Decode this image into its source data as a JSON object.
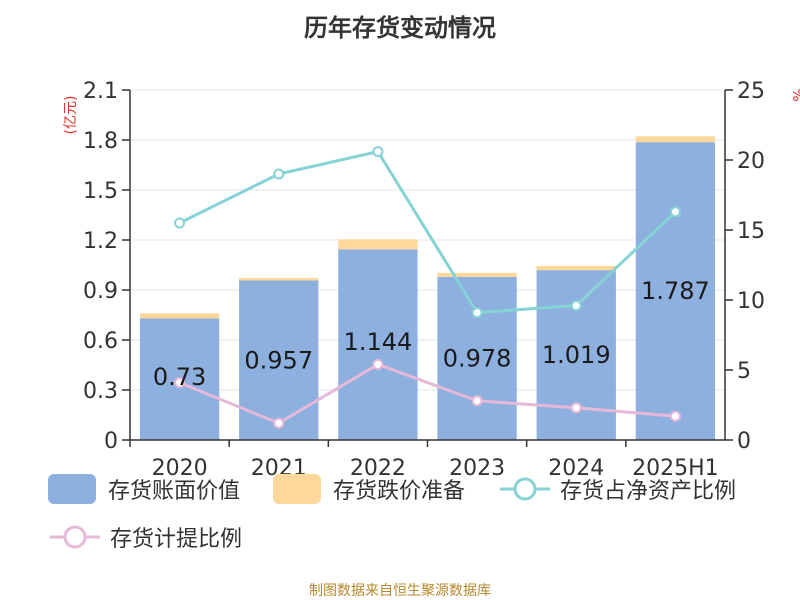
{
  "title": "历年存货变动情况",
  "source": "制图数据来自恒生聚源数据库",
  "colors": {
    "book_value": "#8eb0de",
    "provision": "#fdd89a",
    "ratio_net_assets": "#86d3d6",
    "provision_ratio": "#e6b8da",
    "axis_unit": "#e0302c"
  },
  "legend": [
    {
      "label": "存货账面价值",
      "kind": "bar",
      "color_key": "book_value"
    },
    {
      "label": "存货跌价准备",
      "kind": "bar",
      "color_key": "provision"
    },
    {
      "label": "存货占净资产比例",
      "kind": "line",
      "color_key": "ratio_net_assets"
    },
    {
      "label": "存货计提比例",
      "kind": "line",
      "color_key": "provision_ratio"
    }
  ],
  "chart_data": {
    "type": "bar",
    "title": "历年存货变动情况",
    "categories": [
      "2020",
      "2021",
      "2022",
      "2023",
      "2024",
      "2025H1"
    ],
    "y_left": {
      "unit": "(亿元)",
      "ylim": [
        0,
        2.1
      ],
      "ticks": [
        "0",
        "0.3",
        "0.6",
        "0.9",
        "1.2",
        "1.5",
        "1.8",
        "2.1"
      ]
    },
    "y_right": {
      "unit": "%",
      "ylim": [
        0,
        25
      ],
      "ticks": [
        "0",
        "5",
        "10",
        "15",
        "20",
        "25"
      ]
    },
    "series": [
      {
        "name": "存货账面价值",
        "kind": "bar",
        "stack": "inv",
        "axis": "left",
        "values": [
          0.73,
          0.957,
          1.144,
          0.978,
          1.019,
          1.787
        ],
        "labels": [
          "0.73",
          "0.957",
          "1.144",
          "0.978",
          "1.019",
          "1.787"
        ]
      },
      {
        "name": "存货跌价准备",
        "kind": "bar",
        "stack": "inv",
        "axis": "left",
        "values": [
          0.03,
          0.015,
          0.06,
          0.025,
          0.025,
          0.035
        ]
      },
      {
        "name": "存货占净资产比例",
        "kind": "line",
        "axis": "right",
        "values": [
          15.5,
          19.0,
          20.6,
          9.1,
          9.6,
          16.3
        ]
      },
      {
        "name": "存货计提比例",
        "kind": "line",
        "axis": "right",
        "values": [
          4.1,
          1.2,
          5.4,
          2.8,
          2.3,
          1.7
        ]
      }
    ],
    "grid": "horizontal",
    "legend_position": "bottom"
  }
}
